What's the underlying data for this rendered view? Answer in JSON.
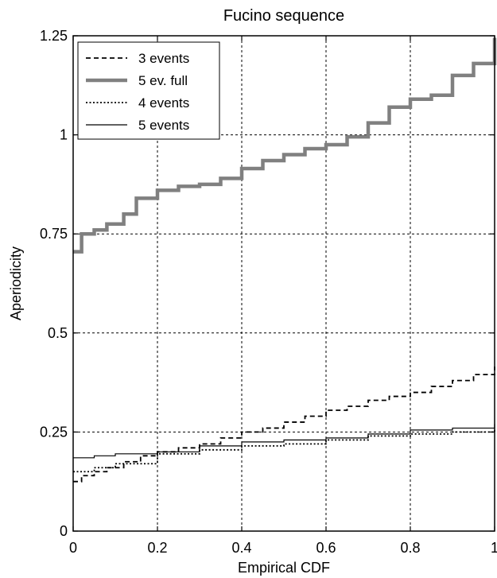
{
  "chart_data": {
    "type": "line",
    "title": "Fucino sequence",
    "xlabel": "Empirical CDF",
    "ylabel": "Aperiodicity",
    "xlim": [
      0,
      1
    ],
    "ylim": [
      0,
      1.25
    ],
    "xticks": [
      "0",
      "0.2",
      "0.4",
      "0.6",
      "0.8",
      "1"
    ],
    "yticks": [
      "0",
      "0.25",
      "0.5",
      "0.75",
      "1",
      "1.25"
    ],
    "grid": true,
    "legend_position": "top-left",
    "series": [
      {
        "name": "3 events",
        "style": "dashed",
        "color": "#000000",
        "x": [
          0,
          0.02,
          0.05,
          0.08,
          0.12,
          0.16,
          0.2,
          0.25,
          0.3,
          0.35,
          0.4,
          0.45,
          0.5,
          0.55,
          0.6,
          0.65,
          0.7,
          0.75,
          0.8,
          0.85,
          0.9,
          0.95,
          1.0
        ],
        "y": [
          0.125,
          0.14,
          0.15,
          0.16,
          0.175,
          0.19,
          0.2,
          0.21,
          0.22,
          0.235,
          0.25,
          0.26,
          0.275,
          0.29,
          0.305,
          0.315,
          0.33,
          0.34,
          0.35,
          0.365,
          0.38,
          0.395,
          0.415
        ]
      },
      {
        "name": "5 ev. full",
        "style": "thick",
        "color": "#808080",
        "x": [
          0,
          0.02,
          0.05,
          0.08,
          0.12,
          0.15,
          0.2,
          0.25,
          0.3,
          0.35,
          0.4,
          0.45,
          0.5,
          0.55,
          0.6,
          0.65,
          0.7,
          0.75,
          0.8,
          0.85,
          0.9,
          0.95,
          1.0
        ],
        "y": [
          0.705,
          0.75,
          0.76,
          0.775,
          0.8,
          0.84,
          0.86,
          0.87,
          0.875,
          0.89,
          0.915,
          0.935,
          0.95,
          0.965,
          0.975,
          0.995,
          1.03,
          1.07,
          1.09,
          1.1,
          1.15,
          1.18,
          1.245
        ]
      },
      {
        "name": "4 events",
        "style": "dotted",
        "color": "#000000",
        "x": [
          0,
          0.05,
          0.1,
          0.2,
          0.3,
          0.4,
          0.5,
          0.6,
          0.7,
          0.8,
          0.9,
          1.0
        ],
        "y": [
          0.15,
          0.16,
          0.17,
          0.195,
          0.205,
          0.215,
          0.22,
          0.23,
          0.24,
          0.245,
          0.25,
          0.26
        ]
      },
      {
        "name": "5 events",
        "style": "solid",
        "color": "#000000",
        "x": [
          0,
          0.05,
          0.1,
          0.2,
          0.3,
          0.4,
          0.5,
          0.6,
          0.7,
          0.8,
          0.9,
          1.0
        ],
        "y": [
          0.185,
          0.19,
          0.195,
          0.2,
          0.215,
          0.225,
          0.23,
          0.235,
          0.245,
          0.255,
          0.26,
          0.27
        ]
      }
    ]
  }
}
